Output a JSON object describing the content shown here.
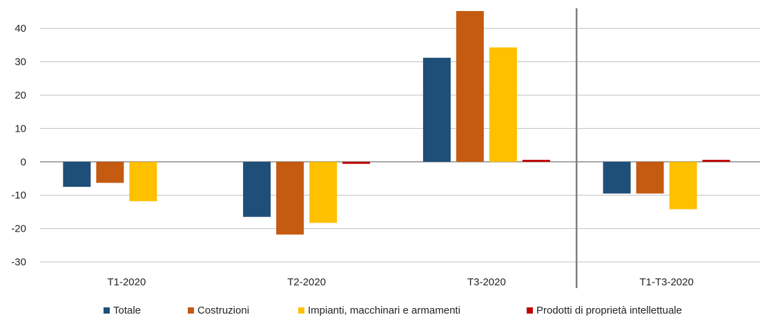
{
  "chart_data": {
    "type": "bar",
    "categories": [
      "T1-2020",
      "T2-2020",
      "T3-2020",
      "T1-T3-2020"
    ],
    "series": [
      {
        "name": "Totale",
        "color": "#1f4e79",
        "values": [
          -7.5,
          -16.5,
          31.2,
          -9.5
        ]
      },
      {
        "name": "Costruzioni",
        "color": "#c55a11",
        "values": [
          -6.3,
          -21.8,
          45.2,
          -9.5
        ]
      },
      {
        "name": "Impianti, macchinari e armamenti",
        "color": "#ffc000",
        "values": [
          -11.8,
          -18.3,
          34.3,
          -14.2
        ]
      },
      {
        "name": "Prodotti di proprietà intellettuale",
        "color": "#c00000",
        "values": [
          0.0,
          -0.6,
          0.6,
          0.6
        ]
      }
    ],
    "ylim": [
      -30,
      45
    ],
    "yticks": [
      -30,
      -20,
      -10,
      0,
      10,
      20,
      30,
      40
    ],
    "grid": true,
    "legend_position": "bottom",
    "separator_before_category": "T1-T3-2020"
  }
}
